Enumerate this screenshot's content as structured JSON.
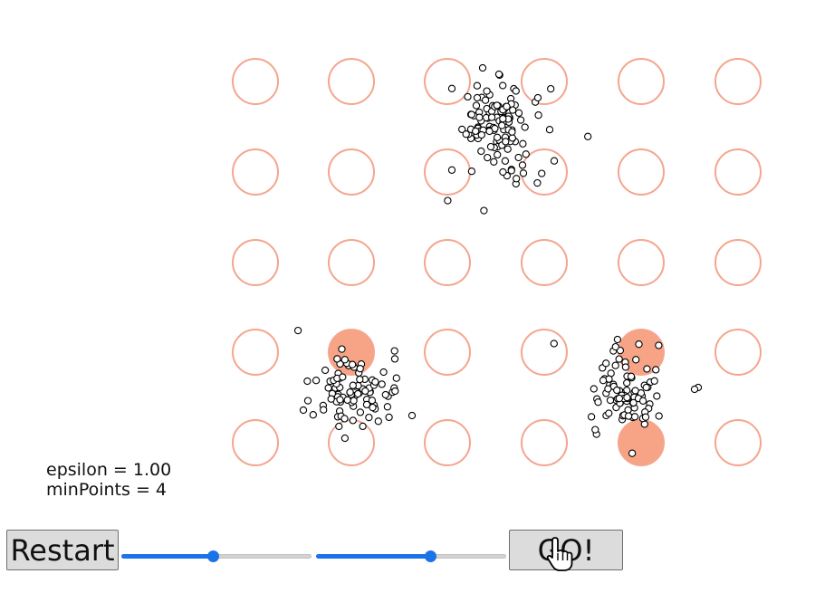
{
  "params": {
    "epsilon_label": "epsilon = 1.00",
    "minpoints_label": "minPoints = 4"
  },
  "buttons": {
    "restart_label": "Restart",
    "go_label": "GO!"
  },
  "sliders": {
    "epsilon_fraction": 0.48,
    "minpoints_fraction": 0.6
  },
  "colors": {
    "ring": "#f5a58e",
    "filled": "#f7a386",
    "point_border": "#000000",
    "slider_accent": "#1a73e8"
  },
  "grid": {
    "rows": 5,
    "cols": 6,
    "filled_cells": [
      [
        3,
        1
      ],
      [
        3,
        4
      ],
      [
        4,
        4
      ]
    ]
  },
  "points": {
    "cluster_top_count": 120,
    "cluster_left_count": 95,
    "cluster_right_count": 85
  },
  "icons": {
    "cursor": "hand-pointer-icon"
  }
}
